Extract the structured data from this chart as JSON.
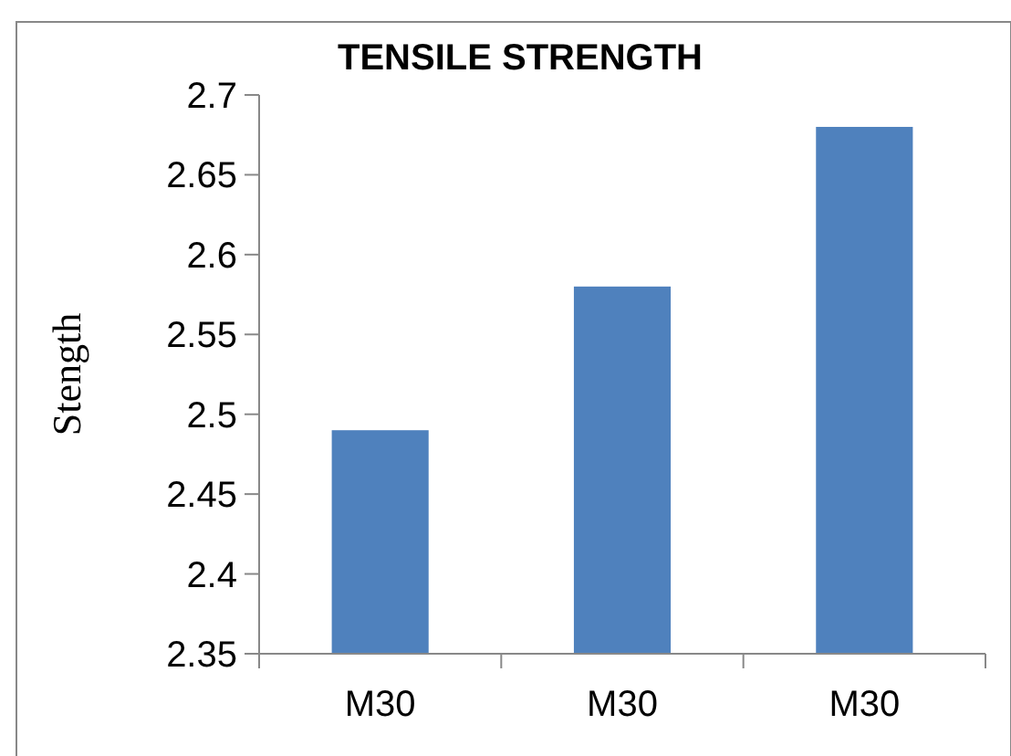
{
  "chart_data": {
    "type": "bar",
    "title": "TENSILE STRENGTH",
    "ylabel": "Stength",
    "categories": [
      "M30",
      "M30",
      "M30"
    ],
    "values": [
      2.49,
      2.58,
      2.68
    ],
    "color": "#4f81bd",
    "ylim": [
      2.35,
      2.7
    ],
    "yticks": [
      2.35,
      2.4,
      2.45,
      2.5,
      2.55,
      2.6,
      2.65,
      2.7
    ],
    "grid": false
  }
}
